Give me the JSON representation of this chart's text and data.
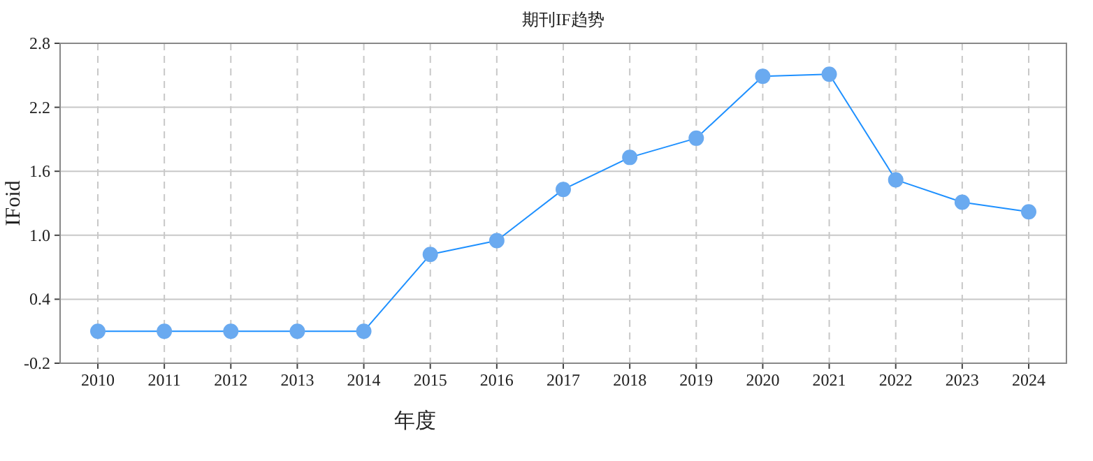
{
  "chart_data": {
    "type": "line",
    "title": "期刊IF趋势",
    "xlabel": "年度",
    "ylabel": "IFoid",
    "categories": [
      "2010",
      "2011",
      "2012",
      "2013",
      "2014",
      "2015",
      "2016",
      "2017",
      "2018",
      "2019",
      "2020",
      "2021",
      "2022",
      "2023",
      "2024"
    ],
    "series": [
      {
        "color": "#1e90ff",
        "values": [
          0.1,
          0.1,
          0.1,
          0.1,
          0.1,
          0.82,
          0.95,
          1.43,
          1.73,
          1.91,
          2.49,
          2.51,
          1.52,
          1.31,
          1.22
        ]
      }
    ],
    "ylim": [
      -0.2,
      2.8
    ],
    "yticks": [
      -0.2,
      0.4,
      {
        "value": 1,
        "label": "1.0"
      },
      1.6,
      2.2,
      2.8
    ],
    "grid": true,
    "marker": "circle",
    "line_style": "solid"
  }
}
